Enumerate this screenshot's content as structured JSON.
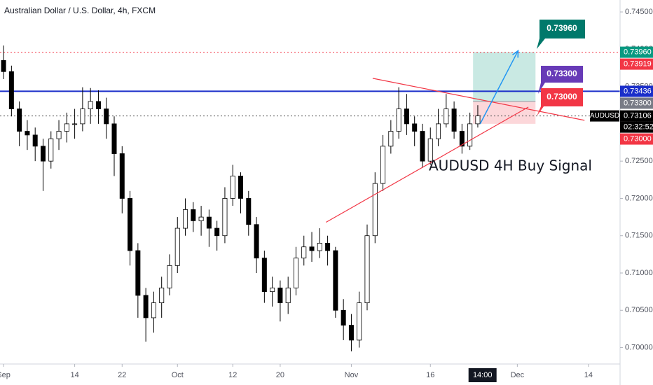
{
  "chart_data": {
    "type": "candlestick",
    "title": "Australian Dollar / U.S. Dollar, 4h, FXCM",
    "annotation": "AUDUSD 4H Buy Signal",
    "symbol": "AUDUSD",
    "countdown": "02:32:52",
    "xlim": [
      -0.45,
      78
    ],
    "ylim": [
      0.6978,
      0.7466
    ],
    "x": [
      0,
      1,
      2,
      3,
      4,
      5,
      6,
      7,
      8,
      9,
      10,
      11,
      12,
      13,
      14,
      15,
      16,
      17,
      18,
      19,
      20,
      21,
      22,
      23,
      24,
      25,
      26,
      27,
      28,
      29,
      30,
      31,
      32,
      33,
      34,
      35,
      36,
      37,
      38,
      39,
      40,
      41,
      42,
      43,
      44,
      45,
      46,
      47,
      48,
      49,
      50,
      51,
      52,
      53,
      54,
      55,
      56,
      57,
      58,
      59,
      60
    ],
    "open": [
      0.7385,
      0.737,
      0.732,
      0.729,
      0.7285,
      0.727,
      0.725,
      0.728,
      0.729,
      0.73,
      0.73,
      0.732,
      0.733,
      0.732,
      0.73,
      0.726,
      0.72,
      0.713,
      0.707,
      0.704,
      0.706,
      0.708,
      0.711,
      0.716,
      0.7185,
      0.717,
      0.7175,
      0.716,
      0.715,
      0.72,
      0.723,
      0.72,
      0.7165,
      0.712,
      0.7075,
      0.708,
      0.706,
      0.708,
      0.712,
      0.7135,
      0.713,
      0.714,
      0.713,
      0.705,
      0.703,
      0.701,
      0.706,
      0.715,
      0.722,
      0.727,
      0.729,
      0.732,
      0.73,
      0.729,
      0.725,
      0.728,
      0.73,
      0.732,
      0.729,
      0.727,
      0.73
    ],
    "high": [
      0.7405,
      0.7378,
      0.733,
      0.7305,
      0.7295,
      0.728,
      0.729,
      0.7305,
      0.7315,
      0.732,
      0.7349,
      0.7348,
      0.7345,
      0.7335,
      0.731,
      0.727,
      0.721,
      0.714,
      0.708,
      0.7075,
      0.7095,
      0.7125,
      0.7175,
      0.72,
      0.7195,
      0.719,
      0.7185,
      0.717,
      0.7215,
      0.7245,
      0.7235,
      0.721,
      0.7175,
      0.713,
      0.7095,
      0.709,
      0.7095,
      0.7135,
      0.715,
      0.7155,
      0.716,
      0.715,
      0.7135,
      0.7065,
      0.7045,
      0.7075,
      0.7165,
      0.7235,
      0.7285,
      0.7305,
      0.7349,
      0.734,
      0.731,
      0.73,
      0.7295,
      0.732,
      0.734,
      0.733,
      0.73,
      0.7315,
      0.7325
    ],
    "low": [
      0.736,
      0.731,
      0.727,
      0.7265,
      0.725,
      0.721,
      0.724,
      0.7265,
      0.7275,
      0.728,
      0.729,
      0.73,
      0.73,
      0.728,
      0.723,
      0.718,
      0.711,
      0.704,
      0.7008,
      0.702,
      0.704,
      0.707,
      0.71,
      0.715,
      0.7155,
      0.715,
      0.7135,
      0.713,
      0.714,
      0.719,
      0.718,
      0.715,
      0.71,
      0.706,
      0.7055,
      0.7035,
      0.7045,
      0.707,
      0.711,
      0.7115,
      0.712,
      0.711,
      0.704,
      0.701,
      0.6995,
      0.7,
      0.705,
      0.714,
      0.721,
      0.726,
      0.728,
      0.7285,
      0.727,
      0.7241,
      0.7245,
      0.727,
      0.7295,
      0.728,
      0.726,
      0.7265,
      0.7295
    ],
    "close": [
      0.737,
      0.732,
      0.729,
      0.7285,
      0.727,
      0.725,
      0.728,
      0.729,
      0.73,
      0.73,
      0.732,
      0.733,
      0.732,
      0.73,
      0.726,
      0.72,
      0.713,
      0.707,
      0.704,
      0.706,
      0.708,
      0.711,
      0.716,
      0.7185,
      0.717,
      0.7175,
      0.716,
      0.715,
      0.72,
      0.723,
      0.72,
      0.7165,
      0.712,
      0.7075,
      0.708,
      0.706,
      0.708,
      0.712,
      0.7135,
      0.713,
      0.714,
      0.713,
      0.705,
      0.703,
      0.701,
      0.706,
      0.715,
      0.722,
      0.727,
      0.729,
      0.732,
      0.73,
      0.729,
      0.725,
      0.728,
      0.73,
      0.732,
      0.729,
      0.727,
      0.73,
      0.73106
    ],
    "yticks": [
      {
        "value": 0.7,
        "label": "0.70000"
      },
      {
        "value": 0.705,
        "label": "0.70500"
      },
      {
        "value": 0.71,
        "label": "0.71000"
      },
      {
        "value": 0.715,
        "label": "0.71500"
      },
      {
        "value": 0.72,
        "label": "0.72000"
      },
      {
        "value": 0.725,
        "label": "0.72500"
      },
      {
        "value": 0.73,
        "label": "0.73000"
      },
      {
        "value": 0.735,
        "label": "0.73500"
      },
      {
        "value": 0.74,
        "label": "0.74000"
      },
      {
        "value": 0.745,
        "label": "0.74500"
      }
    ],
    "xticks": [
      {
        "value": 0,
        "label": "Sep"
      },
      {
        "value": 9,
        "label": "14"
      },
      {
        "value": 15,
        "label": "22"
      },
      {
        "value": 22,
        "label": "Oct"
      },
      {
        "value": 29,
        "label": "12"
      },
      {
        "value": 35,
        "label": "20"
      },
      {
        "value": 44,
        "label": "Nov"
      },
      {
        "value": 54,
        "label": "16"
      },
      {
        "value": 65,
        "label": "Dec"
      },
      {
        "value": 74,
        "label": "14"
      }
    ],
    "crosshair_x": {
      "value": 60.6,
      "label": "14:00"
    },
    "levels": [
      {
        "value": 0.7396,
        "color": "#f23645",
        "style": "dotted"
      },
      {
        "value": 0.73436,
        "color": "#1a2ec9",
        "style": "solid"
      },
      {
        "value": 0.73106,
        "color": "#555555",
        "style": "dotted"
      }
    ],
    "price_tags": [
      {
        "value": 0.7396,
        "label": "0.73960",
        "color": "#089981"
      },
      {
        "value": 0.73919,
        "label": "0.73919",
        "color": "#f23645"
      },
      {
        "value": 0.73436,
        "label": "0.73436",
        "color": "#1a2ec9"
      },
      {
        "value": 0.733,
        "label": "0.73300",
        "color": "#787b86"
      },
      {
        "value": 0.73106,
        "label": "0.73106",
        "color": "#000000"
      },
      {
        "value": 0.73,
        "label": "0.73000",
        "color": "#f23645"
      }
    ],
    "position": {
      "x": [
        59.4,
        67.3
      ],
      "entry": 0.733,
      "stop": 0.73,
      "target": 0.7396,
      "target_label": "0.73960",
      "entry_label": "0.73300",
      "stop_label": "0.73000"
    },
    "trendlines": [
      {
        "x": [
          40.8,
          66.4
        ],
        "y": [
          0.7168,
          0.73225
        ],
        "color": "#f23645"
      },
      {
        "x": [
          46.7,
          73.5
        ],
        "y": [
          0.7361,
          0.73047
        ],
        "color": "#f23645"
      }
    ],
    "arrow": {
      "x": [
        60.3,
        65.1
      ],
      "y": [
        0.73,
        0.7398
      ],
      "color": "#2196f3"
    }
  }
}
